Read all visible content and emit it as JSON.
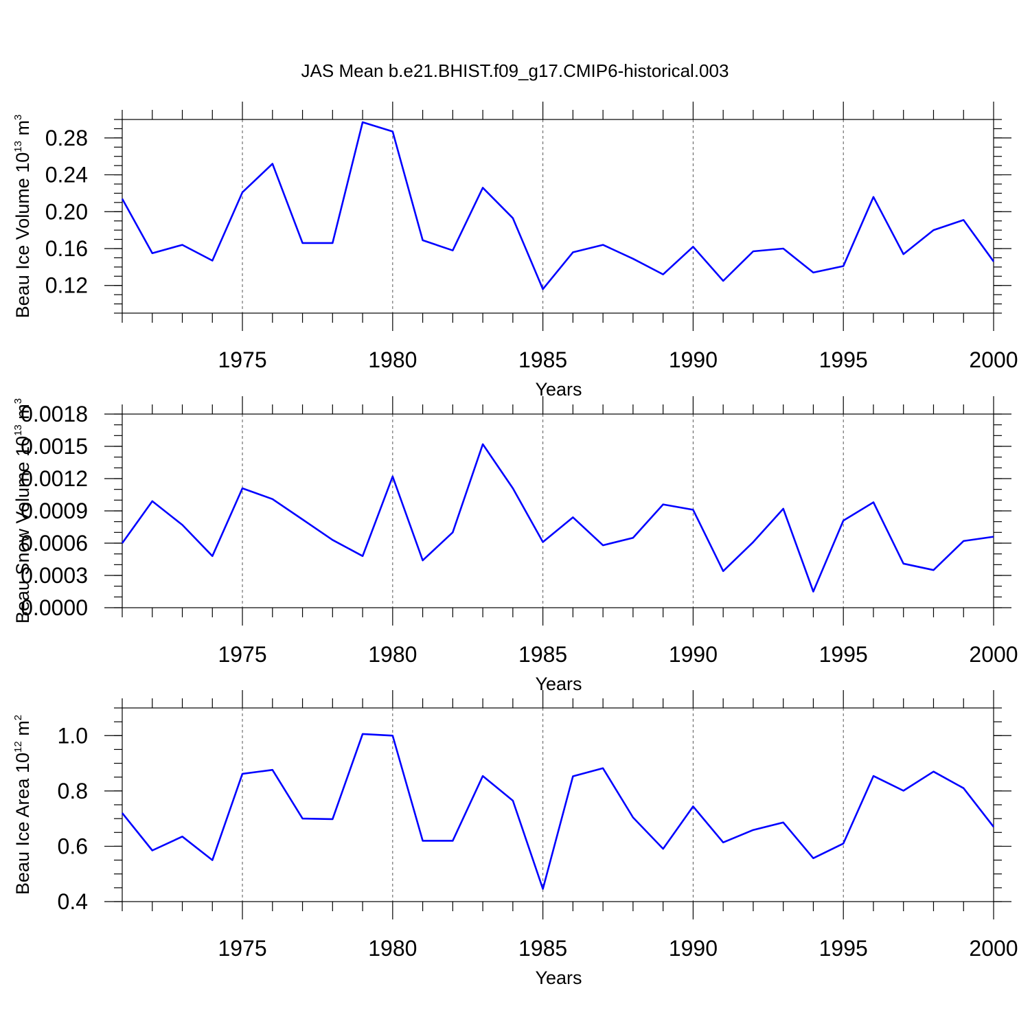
{
  "title": "JAS Mean b.e21.BHIST.f09_g17.CMIP6-historical.003",
  "chart_data": [
    {
      "type": "line",
      "ylabel": "Beau Ice Volume 10",
      "ylabel_exp": "13",
      "ylabel_unit": " m",
      "ylabel_unit_exp": "3",
      "xlabel": "Years",
      "xlim": [
        1971,
        2000
      ],
      "ylim": [
        0.09,
        0.3
      ],
      "yticks": [
        0.12,
        0.16,
        0.2,
        0.24,
        0.28
      ],
      "ytick_labels": [
        "0.12",
        "0.16",
        "0.20",
        "0.24",
        "0.28"
      ],
      "yminor": 0.01,
      "xticks": [
        1975,
        1980,
        1985,
        1990,
        1995,
        2000
      ],
      "xtick_labels": [
        "1975",
        "1980",
        "1985",
        "1990",
        "1995",
        "2000"
      ],
      "color": "#0000ff",
      "x": [
        1971,
        1972,
        1973,
        1974,
        1975,
        1976,
        1977,
        1978,
        1979,
        1980,
        1981,
        1982,
        1983,
        1984,
        1985,
        1986,
        1987,
        1988,
        1989,
        1990,
        1991,
        1992,
        1993,
        1994,
        1995,
        1996,
        1997,
        1998,
        1999,
        2000
      ],
      "y": [
        0.214,
        0.155,
        0.164,
        0.147,
        0.221,
        0.252,
        0.166,
        0.166,
        0.297,
        0.287,
        0.169,
        0.158,
        0.226,
        0.193,
        0.116,
        0.156,
        0.164,
        0.149,
        0.132,
        0.162,
        0.125,
        0.157,
        0.16,
        0.134,
        0.141,
        0.216,
        0.154,
        0.18,
        0.191,
        0.146
      ]
    },
    {
      "type": "line",
      "ylabel": "Beau Snow Volume 10",
      "ylabel_exp": "13",
      "ylabel_unit": " m",
      "ylabel_unit_exp": "3",
      "xlabel": "Years",
      "xlim": [
        1971,
        2000
      ],
      "ylim": [
        0.0,
        0.0018
      ],
      "yticks": [
        0.0,
        0.0003,
        0.0006,
        0.0009,
        0.0012,
        0.0015,
        0.0018
      ],
      "ytick_labels": [
        "0.0000",
        "0.0003",
        "0.0006",
        "0.0009",
        "0.0012",
        "0.0015",
        "0.0018"
      ],
      "yminor": 0.0001,
      "xticks": [
        1975,
        1980,
        1985,
        1990,
        1995,
        2000
      ],
      "xtick_labels": [
        "1975",
        "1980",
        "1985",
        "1990",
        "1995",
        "2000"
      ],
      "color": "#0000ff",
      "x": [
        1971,
        1972,
        1973,
        1974,
        1975,
        1976,
        1977,
        1978,
        1979,
        1980,
        1981,
        1982,
        1983,
        1984,
        1985,
        1986,
        1987,
        1988,
        1989,
        1990,
        1991,
        1992,
        1993,
        1994,
        1995,
        1996,
        1997,
        1998,
        1999,
        2000
      ],
      "y": [
        0.0006,
        0.00099,
        0.00077,
        0.00048,
        0.00111,
        0.00101,
        0.00082,
        0.00063,
        0.00048,
        0.00122,
        0.00044,
        0.0007,
        0.00152,
        0.00111,
        0.00061,
        0.00084,
        0.00058,
        0.00065,
        0.00096,
        0.00091,
        0.00034,
        0.00061,
        0.00092,
        0.00015,
        0.00081,
        0.00098,
        0.00041,
        0.00035,
        0.00062,
        0.00066
      ]
    },
    {
      "type": "line",
      "ylabel": "Beau Ice Area 10",
      "ylabel_exp": "12",
      "ylabel_unit": " m",
      "ylabel_unit_exp": "2",
      "xlabel": "Years",
      "xlim": [
        1971,
        2000
      ],
      "ylim": [
        0.4,
        1.1
      ],
      "yticks": [
        0.4,
        0.6,
        0.8,
        1.0
      ],
      "ytick_labels": [
        "0.4",
        "0.6",
        "0.8",
        "1.0"
      ],
      "yminor": 0.05,
      "xticks": [
        1975,
        1980,
        1985,
        1990,
        1995,
        2000
      ],
      "xtick_labels": [
        "1975",
        "1980",
        "1985",
        "1990",
        "1995",
        "2000"
      ],
      "color": "#0000ff",
      "x": [
        1971,
        1972,
        1973,
        1974,
        1975,
        1976,
        1977,
        1978,
        1979,
        1980,
        1981,
        1982,
        1983,
        1984,
        1985,
        1986,
        1987,
        1988,
        1989,
        1990,
        1991,
        1992,
        1993,
        1994,
        1995,
        1996,
        1997,
        1998,
        1999,
        2000
      ],
      "y": [
        0.72,
        0.585,
        0.635,
        0.55,
        0.862,
        0.876,
        0.7,
        0.698,
        1.006,
        1.0,
        0.62,
        0.62,
        0.854,
        0.765,
        0.446,
        0.853,
        0.882,
        0.704,
        0.591,
        0.744,
        0.614,
        0.659,
        0.686,
        0.557,
        0.61,
        0.854,
        0.801,
        0.87,
        0.81,
        0.67
      ]
    }
  ]
}
